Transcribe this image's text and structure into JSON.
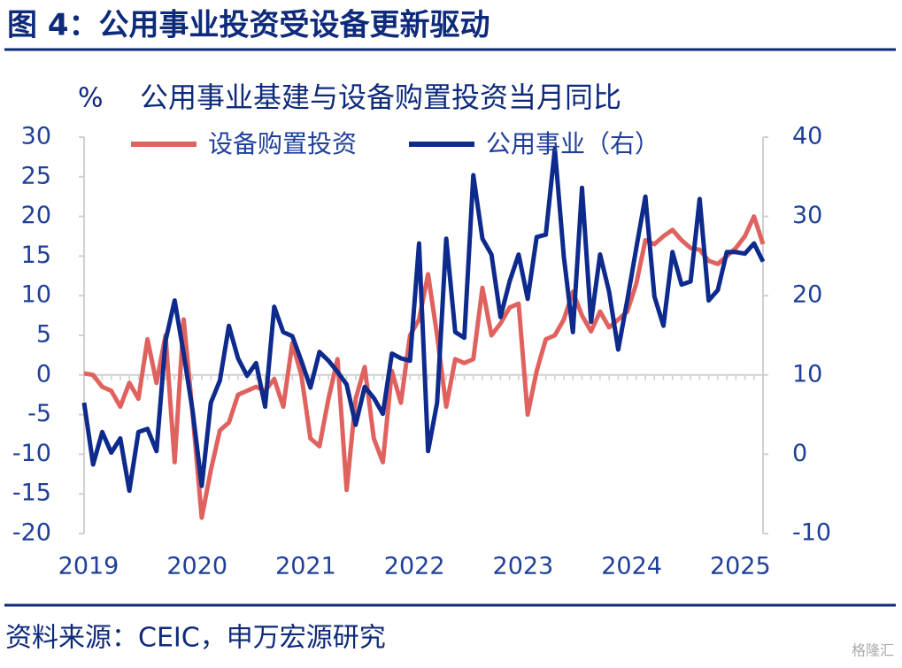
{
  "header": {
    "title": "图 4：公用事业投资受设备更新驱动"
  },
  "chart_data": {
    "type": "line",
    "title": "公用事业基建与设备购置投资当月同比",
    "y_label": "%",
    "categories": [
      "2019",
      null,
      null,
      null,
      null,
      null,
      null,
      null,
      null,
      null,
      null,
      null,
      "2020",
      null,
      null,
      null,
      null,
      null,
      null,
      null,
      null,
      null,
      null,
      null,
      "2021",
      null,
      null,
      null,
      null,
      null,
      null,
      null,
      null,
      null,
      null,
      null,
      "2022",
      null,
      null,
      null,
      null,
      null,
      null,
      null,
      null,
      null,
      null,
      null,
      "2023",
      null,
      null,
      null,
      null,
      null,
      null,
      null,
      null,
      null,
      null,
      null,
      "2024",
      null,
      null,
      null,
      null,
      null,
      null,
      null,
      null,
      null,
      null,
      null,
      "2025",
      null,
      null,
      null
    ],
    "series": [
      {
        "name": "设备购置投资",
        "color": "#e0625f",
        "values": [
          0.2,
          0,
          -1.5,
          -2,
          -4,
          -1,
          -3,
          4.5,
          -1,
          5,
          -11,
          7,
          -5,
          -18,
          -12,
          -7,
          -6,
          -2.5,
          -2,
          -1.5,
          -2,
          -0.5,
          -4,
          4,
          0,
          -8,
          -9,
          -3,
          2,
          -14.5,
          -3,
          1,
          -8,
          -11,
          0.5,
          -3.5,
          5,
          7,
          12.7,
          5,
          -4,
          2,
          1.5,
          2,
          11,
          5,
          6.5,
          8.5,
          9,
          -5,
          0.5,
          4.5,
          5,
          7,
          10.5,
          7.5,
          5.5,
          8,
          6,
          7,
          8,
          11.5,
          17,
          16.5,
          17.5,
          18.3,
          17,
          16,
          15.8,
          14.4,
          14,
          15,
          16,
          17.5,
          20,
          16.5
        ]
      },
      {
        "name": "公用事业（右）",
        "color": "#0d2a8c",
        "axis": "y2",
        "values": [
          6.5,
          -1.3,
          2.8,
          0.2,
          2,
          -4.6,
          2.8,
          3.2,
          0.4,
          14.3,
          19.4,
          12.7,
          5.4,
          -4,
          6.5,
          9.3,
          16.2,
          12.1,
          9.9,
          11.5,
          6,
          18.6,
          15.4,
          14.9,
          11.8,
          8.4,
          12.9,
          11.8,
          10.4,
          8.8,
          3.7,
          8.5,
          7.1,
          5.1,
          12.7,
          12.1,
          11.8,
          26.6,
          0.4,
          6.5,
          27.2,
          15.4,
          14.7,
          35.2,
          27.2,
          25.2,
          17.3,
          21.8,
          25.2,
          19.6,
          27.4,
          27.7,
          38.5,
          24.9,
          15.4,
          33.6,
          16.7,
          25.2,
          20.5,
          13.2,
          19.4,
          26,
          32.5,
          19.9,
          16.2,
          25.5,
          21.4,
          21.8,
          32.2,
          19.4,
          20.7,
          25.5,
          25.5,
          25.3,
          26.6,
          24.3
        ]
      }
    ],
    "ylim": [
      -20,
      30
    ],
    "yticks": [
      30,
      25,
      20,
      15,
      10,
      5,
      0,
      -5,
      -10,
      -15,
      -20
    ],
    "y2lim": [
      -10,
      40
    ],
    "y2ticks": [
      40,
      30,
      20,
      10,
      0,
      -10
    ],
    "grid": false,
    "legend": "top"
  },
  "footer": {
    "source": "资料来源：CEIC，申万宏源研究",
    "watermark": "格隆汇"
  }
}
